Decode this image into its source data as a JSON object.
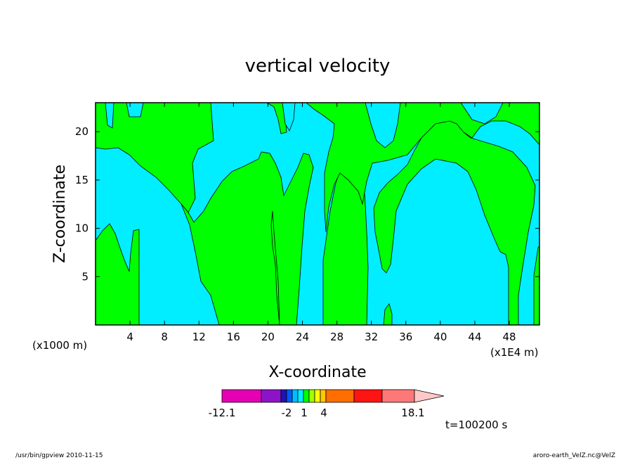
{
  "chart_data": {
    "type": "heatmap",
    "title": "vertical velocity",
    "xlabel": "X-coordinate",
    "ylabel": "Z-coordinate",
    "x_unit_left": "(x1000 m)",
    "x_unit_right": "(x1E4 m)",
    "xlim": [
      0,
      51.5
    ],
    "ylim": [
      0,
      23
    ],
    "x_ticks": [
      4,
      8,
      12,
      16,
      20,
      24,
      28,
      32,
      36,
      40,
      44,
      48
    ],
    "y_ticks": [
      5,
      10,
      15,
      20
    ],
    "fill_colors": {
      "positive_small": "#00ff00",
      "negative_small": "#00eeff",
      "contour_line": "#000000"
    },
    "colorbar": {
      "colors": [
        "#e600b4",
        "#8c14c8",
        "#1e14b4",
        "#005aff",
        "#00beff",
        "#00eeff",
        "#00ff00",
        "#a0ff00",
        "#ffff00",
        "#ffc800",
        "#ff6e00",
        "#ff1414",
        "#ff7878"
      ],
      "extend_color": "#ffc8c8",
      "tick_labels": [
        "-12.1",
        "-2",
        "1",
        "4",
        "18.1"
      ]
    },
    "time_label": "t=100200 s"
  },
  "footer": {
    "left": "/usr/bin/gpview   2010-11-15",
    "right": "aroro-earth_VelZ.nc@VelZ"
  }
}
